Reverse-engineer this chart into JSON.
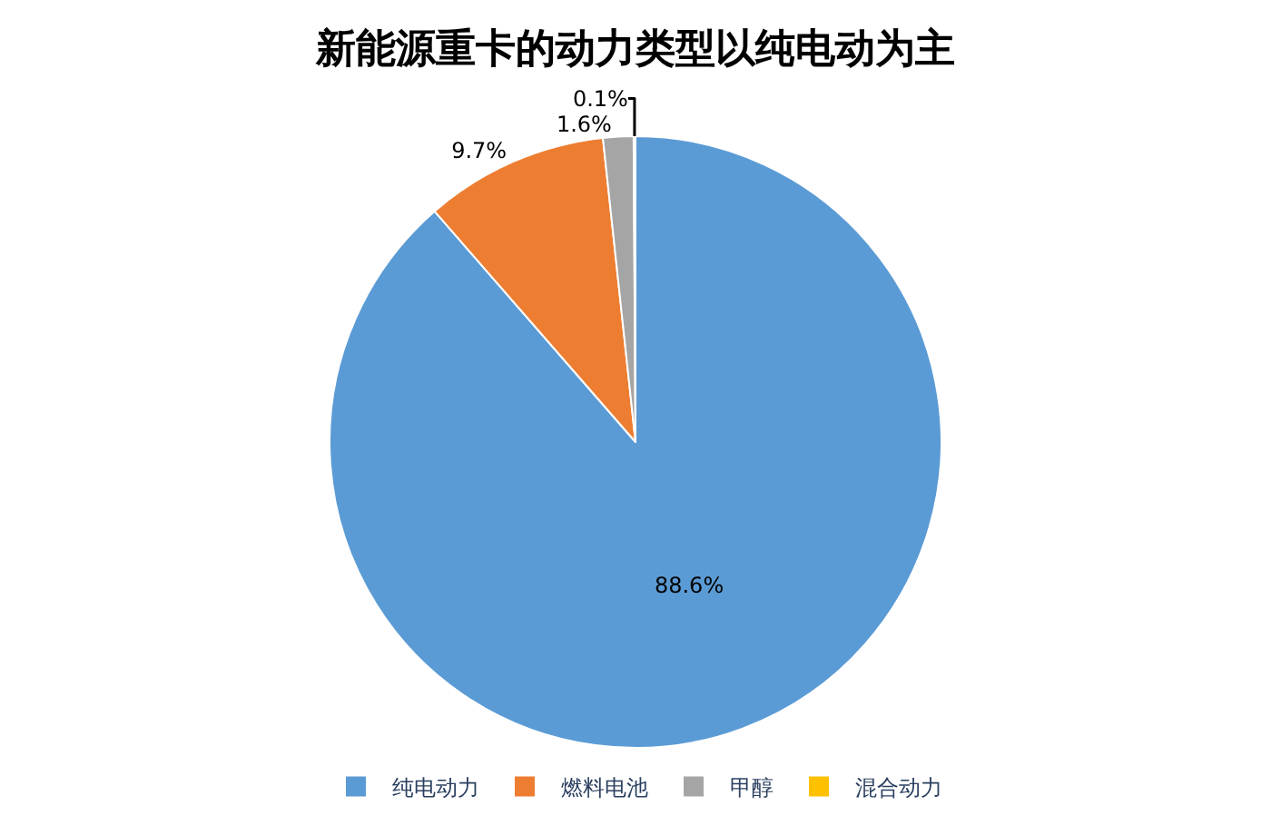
{
  "chart_data": {
    "type": "pie",
    "title": "新能源重卡的动力类型以纯电动为主",
    "categories": [
      "纯电动力",
      "燃料电池",
      "甲醇",
      "混合动力"
    ],
    "values": [
      88.6,
      9.7,
      1.6,
      0.1
    ],
    "value_labels": [
      "88.6%",
      "9.7%",
      "1.6%",
      "0.1%"
    ],
    "colors": [
      "#5b9bd5",
      "#ed7d31",
      "#a5a5a5",
      "#ffc000"
    ],
    "legend": "bottom"
  }
}
